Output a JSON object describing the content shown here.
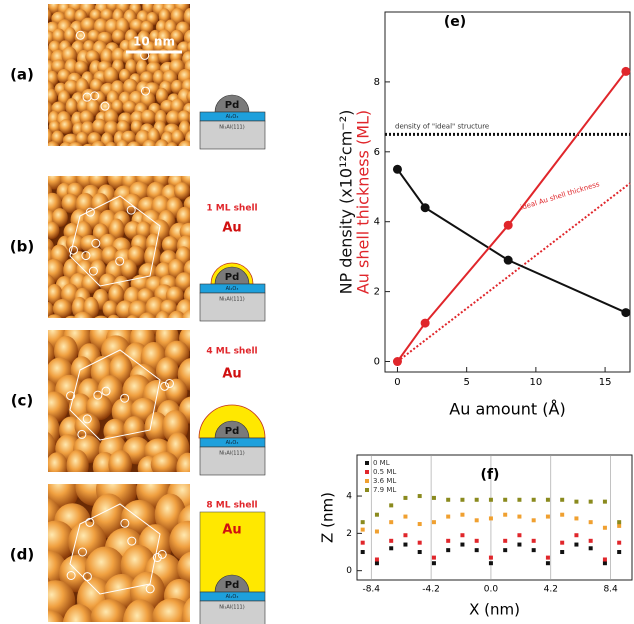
{
  "panels": [
    {
      "label": "(a)",
      "scale_bar": "10 nm",
      "schematic": {
        "core": "Pd",
        "oxide": "Al₂O₃",
        "substrate": "Ni₃Al(111)"
      }
    },
    {
      "label": "(b)",
      "shell_label": "1 ML shell",
      "schematic": {
        "shell": "Au",
        "core": "Pd",
        "oxide": "Al₂O₃",
        "substrate": "Ni₃Al(111)"
      }
    },
    {
      "label": "(c)",
      "shell_label": "4 ML shell",
      "schematic": {
        "shell": "Au",
        "core": "Pd",
        "oxide": "Al₂O₃",
        "substrate": "Ni₃Al(111)"
      }
    },
    {
      "label": "(d)",
      "shell_label": "8 ML shell",
      "schematic": {
        "shell": "Au",
        "core": "Pd",
        "oxide": "Al₂O₃",
        "substrate": "Ni₃Al(111)"
      }
    }
  ],
  "chart_data": [
    {
      "type": "line",
      "title": "(e)",
      "xlabel": "Au amount (Å)",
      "xlim": [
        -0.9,
        16.8
      ],
      "ylim": [
        -0.3,
        10
      ],
      "xticks": [
        0,
        5,
        10,
        15
      ],
      "yticks": [
        0,
        2,
        4,
        6,
        8
      ],
      "x": [
        0,
        2,
        8,
        16.5
      ],
      "series": [
        {
          "name": "NP density (x10¹²cm⁻²)",
          "color": "#111111",
          "values": [
            5.5,
            4.4,
            2.9,
            1.4
          ]
        },
        {
          "name": "Au shell thickness (ML)",
          "color": "#e0262b",
          "values": [
            0,
            1.1,
            3.9,
            8.3
          ]
        }
      ],
      "reference": {
        "value": 6.5,
        "label": "density of \"ideal\" structure"
      },
      "ideal": {
        "x": [
          0,
          16.8
        ],
        "values": [
          0,
          5.1
        ],
        "label": "ideal Au shell thickness",
        "color": "#e0262b"
      }
    },
    {
      "type": "scatter",
      "title": "(f)",
      "xlabel": "X (nm)",
      "ylabel": "Z (nm)",
      "xlim": [
        -9.4,
        9.9
      ],
      "ylim": [
        -0.5,
        6.2
      ],
      "xticks": [
        -8.4,
        -4.2,
        {
          "value": 0,
          "label": "0.0"
        },
        4.2,
        8.4
      ],
      "yticks": [
        0,
        2,
        4
      ],
      "grid": "x",
      "legend": "upper left",
      "x": [
        -9,
        -8,
        -7,
        -6,
        -5,
        -4,
        -3,
        -2,
        -1,
        0,
        1,
        2,
        3,
        4,
        5,
        6,
        7,
        8,
        9
      ],
      "series": [
        {
          "name": "0 ML",
          "color": "#111111",
          "values": [
            1.0,
            0.4,
            1.2,
            1.4,
            1.0,
            0.4,
            1.1,
            1.4,
            1.1,
            0.4,
            1.1,
            1.4,
            1.1,
            0.4,
            1.0,
            1.4,
            1.2,
            0.4,
            1.0
          ]
        },
        {
          "name": "0.5 ML",
          "color": "#e0262b",
          "values": [
            1.5,
            0.6,
            1.6,
            1.9,
            1.5,
            0.7,
            1.6,
            1.9,
            1.6,
            0.7,
            1.6,
            1.9,
            1.6,
            0.7,
            1.5,
            1.9,
            1.6,
            0.6,
            1.5
          ]
        },
        {
          "name": "3.6 ML",
          "color": "#f0a030",
          "values": [
            2.2,
            2.1,
            2.6,
            2.9,
            2.5,
            2.6,
            2.9,
            3.0,
            2.7,
            2.8,
            3.0,
            2.9,
            2.7,
            2.9,
            3.0,
            2.8,
            2.6,
            2.3,
            2.4
          ]
        },
        {
          "name": "7.9 ML",
          "color": "#8a8a1e",
          "values": [
            2.6,
            3.0,
            3.5,
            3.9,
            4.0,
            3.9,
            3.8,
            3.8,
            3.8,
            3.8,
            3.8,
            3.8,
            3.8,
            3.8,
            3.8,
            3.7,
            3.7,
            3.7,
            2.6
          ]
        }
      ]
    }
  ]
}
